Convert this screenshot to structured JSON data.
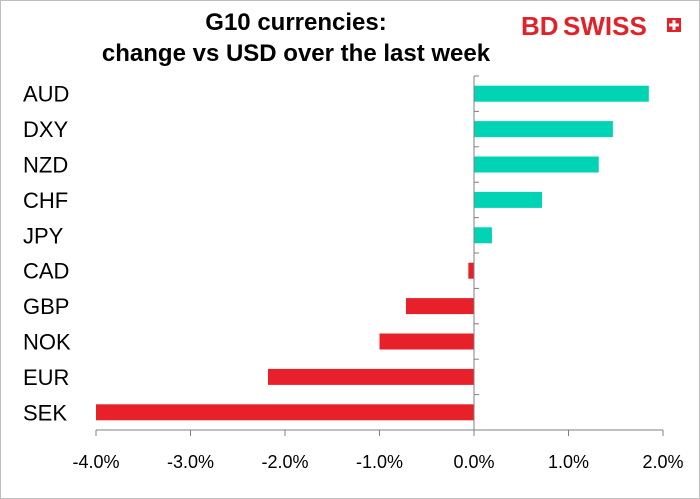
{
  "brand": {
    "name": "BDSWISS",
    "prefix": "BD",
    "suffix": "SWISS",
    "color": "#e32128"
  },
  "chart_data": {
    "type": "bar",
    "orientation": "horizontal",
    "title": [
      "G10 currencies:",
      "change vs USD over the last week"
    ],
    "categories": [
      "AUD",
      "DXY",
      "NZD",
      "CHF",
      "JPY",
      "CAD",
      "GBP",
      "NOK",
      "EUR",
      "SEK"
    ],
    "values": [
      1.85,
      1.47,
      1.32,
      0.72,
      0.19,
      -0.06,
      -0.72,
      -1.0,
      -2.18,
      -4.0
    ],
    "xlim": [
      -4.0,
      2.0
    ],
    "xticks": [
      -4.0,
      -3.0,
      -2.0,
      -1.0,
      0.0,
      1.0,
      2.0
    ],
    "xtick_labels": [
      "-4.0%",
      "-3.0%",
      "-2.0%",
      "-1.0%",
      "0.0%",
      "1.0%",
      "2.0%"
    ],
    "positive_color": "#00d4b4",
    "negative_color": "#e8202a",
    "grid": false,
    "legend": "none"
  }
}
